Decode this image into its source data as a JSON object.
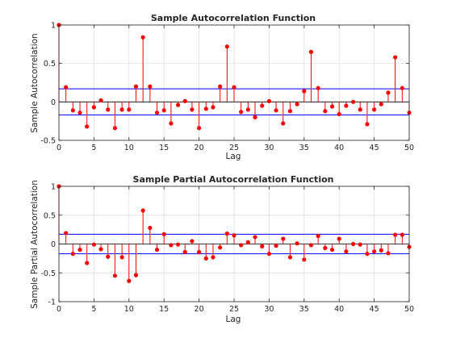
{
  "chart_data": [
    {
      "type": "stem",
      "title": "Sample Autocorrelation Function",
      "xlabel": "Lag",
      "ylabel": "Sample Autocorrelation",
      "xlim": [
        0,
        50
      ],
      "ylim": [
        -0.5,
        1
      ],
      "xticks": [
        0,
        5,
        10,
        15,
        20,
        25,
        30,
        35,
        40,
        45,
        50
      ],
      "yticks": [
        -0.5,
        0,
        0.5,
        1
      ],
      "ytick_labels": [
        "-0.5",
        "0",
        "0.5",
        "1"
      ],
      "grid": true,
      "bounds": [
        0.17,
        -0.17
      ],
      "lags": [
        0,
        1,
        2,
        3,
        4,
        5,
        6,
        7,
        8,
        9,
        10,
        11,
        12,
        13,
        14,
        15,
        16,
        17,
        18,
        19,
        20,
        21,
        22,
        23,
        24,
        25,
        26,
        27,
        28,
        29,
        30,
        31,
        32,
        33,
        34,
        35,
        36,
        37,
        38,
        39,
        40,
        41,
        42,
        43,
        44,
        45,
        46,
        47,
        48,
        49,
        50
      ],
      "values": [
        1,
        0.19,
        -0.11,
        -0.14,
        -0.32,
        -0.07,
        0.02,
        -0.1,
        -0.34,
        -0.1,
        -0.1,
        0.2,
        0.84,
        0.2,
        -0.14,
        -0.11,
        -0.28,
        -0.04,
        0.01,
        -0.1,
        -0.34,
        -0.09,
        -0.07,
        0.2,
        0.72,
        0.19,
        -0.13,
        -0.1,
        -0.2,
        -0.05,
        0.01,
        -0.11,
        -0.28,
        -0.12,
        -0.03,
        0.14,
        0.65,
        0.18,
        -0.12,
        -0.06,
        -0.16,
        -0.05,
        0.0,
        -0.1,
        -0.29,
        -0.1,
        -0.03,
        0.12,
        0.58,
        0.18,
        -0.14
      ]
    },
    {
      "type": "stem",
      "title": "Sample Partial Autocorrelation Function",
      "xlabel": "Lag",
      "ylabel": "Sample Partial Autocorrelation",
      "xlim": [
        0,
        50
      ],
      "ylim": [
        -1,
        1
      ],
      "xticks": [
        0,
        5,
        10,
        15,
        20,
        25,
        30,
        35,
        40,
        45,
        50
      ],
      "yticks": [
        -1,
        -0.5,
        0,
        0.5,
        1
      ],
      "ytick_labels": [
        "-1",
        "-0.5",
        "0",
        "0.5",
        "1"
      ],
      "grid": true,
      "bounds": [
        0.17,
        -0.17
      ],
      "lags": [
        0,
        1,
        2,
        3,
        4,
        5,
        6,
        7,
        8,
        9,
        10,
        11,
        12,
        13,
        14,
        15,
        16,
        17,
        18,
        19,
        20,
        21,
        22,
        23,
        24,
        25,
        26,
        27,
        28,
        29,
        30,
        31,
        32,
        33,
        34,
        35,
        36,
        37,
        38,
        39,
        40,
        41,
        42,
        43,
        44,
        45,
        46,
        47,
        48,
        49,
        50
      ],
      "values": [
        1,
        0.19,
        -0.17,
        -0.1,
        -0.33,
        -0.01,
        -0.09,
        -0.22,
        -0.55,
        -0.23,
        -0.64,
        -0.54,
        0.58,
        0.28,
        -0.1,
        0.17,
        -0.02,
        -0.01,
        -0.14,
        0.05,
        -0.14,
        -0.25,
        -0.23,
        -0.06,
        0.18,
        0.15,
        -0.02,
        0.03,
        0.12,
        -0.04,
        -0.17,
        -0.03,
        0.09,
        -0.23,
        0.01,
        -0.27,
        -0.02,
        0.14,
        -0.07,
        -0.1,
        0.09,
        -0.13,
        0.0,
        -0.01,
        -0.17,
        -0.13,
        -0.11,
        -0.16,
        0.16,
        0.16,
        -0.05
      ]
    }
  ]
}
